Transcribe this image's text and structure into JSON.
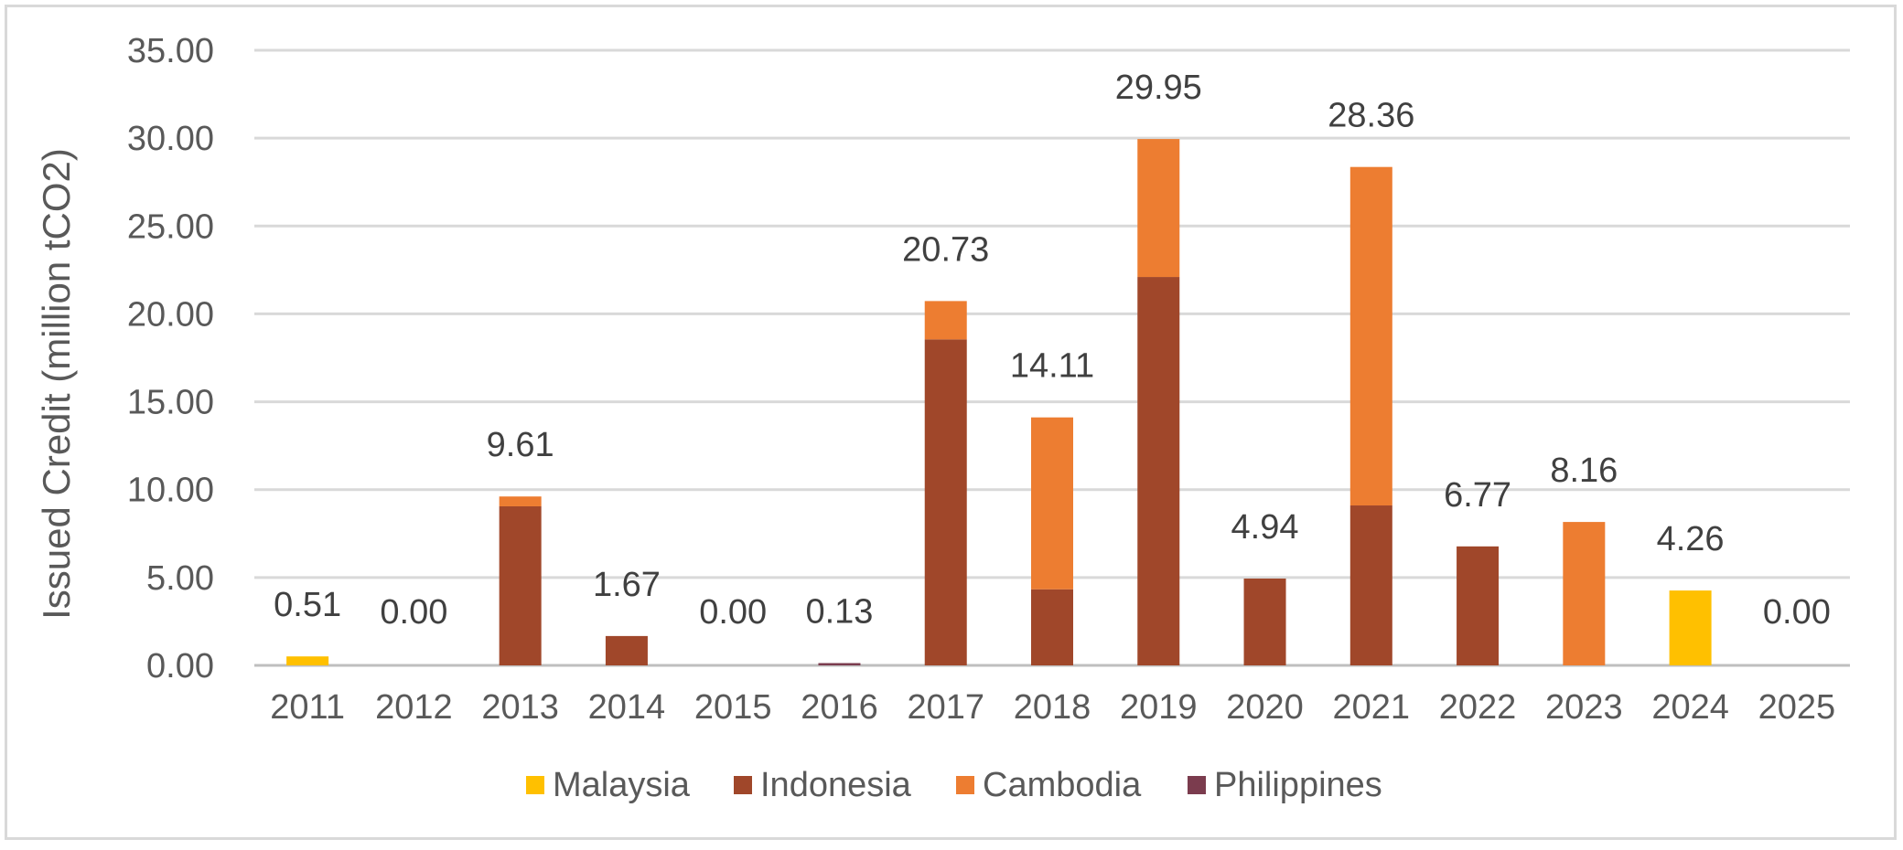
{
  "chart_data": {
    "type": "bar",
    "stacked": true,
    "title": "",
    "xlabel": "",
    "ylabel": "Issued Credit (million tCO2)",
    "ylim": [
      0,
      35
    ],
    "yticks": [
      "0.00",
      "5.00",
      "10.00",
      "15.00",
      "20.00",
      "25.00",
      "30.00",
      "35.00"
    ],
    "grid": true,
    "legend_position": "bottom",
    "categories": [
      "2011",
      "2012",
      "2013",
      "2014",
      "2015",
      "2016",
      "2017",
      "2018",
      "2019",
      "2020",
      "2021",
      "2022",
      "2023",
      "2024",
      "2025"
    ],
    "series": [
      {
        "name": "Malaysia",
        "color": "#FFC000",
        "values": [
          0.51,
          0,
          0,
          0,
          0,
          0,
          0,
          0,
          0,
          0,
          0,
          0,
          0,
          4.26,
          0
        ]
      },
      {
        "name": "Indonesia",
        "color": "#A0472A",
        "values": [
          0,
          0,
          9.05,
          1.67,
          0,
          0,
          18.55,
          4.33,
          22.1,
          4.94,
          9.1,
          6.77,
          0,
          0,
          0
        ]
      },
      {
        "name": "Cambodia",
        "color": "#ED7D31",
        "values": [
          0,
          0,
          0.56,
          0,
          0,
          0,
          2.18,
          9.78,
          7.85,
          0,
          19.26,
          0,
          8.16,
          0,
          0
        ]
      },
      {
        "name": "Philippines",
        "color": "#7B3C4E",
        "values": [
          0,
          0,
          0,
          0,
          0,
          0.13,
          0,
          0,
          0,
          0,
          0,
          0,
          0,
          0,
          0
        ]
      }
    ],
    "totals": [
      "0.51",
      "0.00",
      "9.61",
      "1.67",
      "0.00",
      "0.13",
      "20.73",
      "14.11",
      "29.95",
      "4.94",
      "28.36",
      "6.77",
      "8.16",
      "4.26",
      "0.00"
    ]
  }
}
